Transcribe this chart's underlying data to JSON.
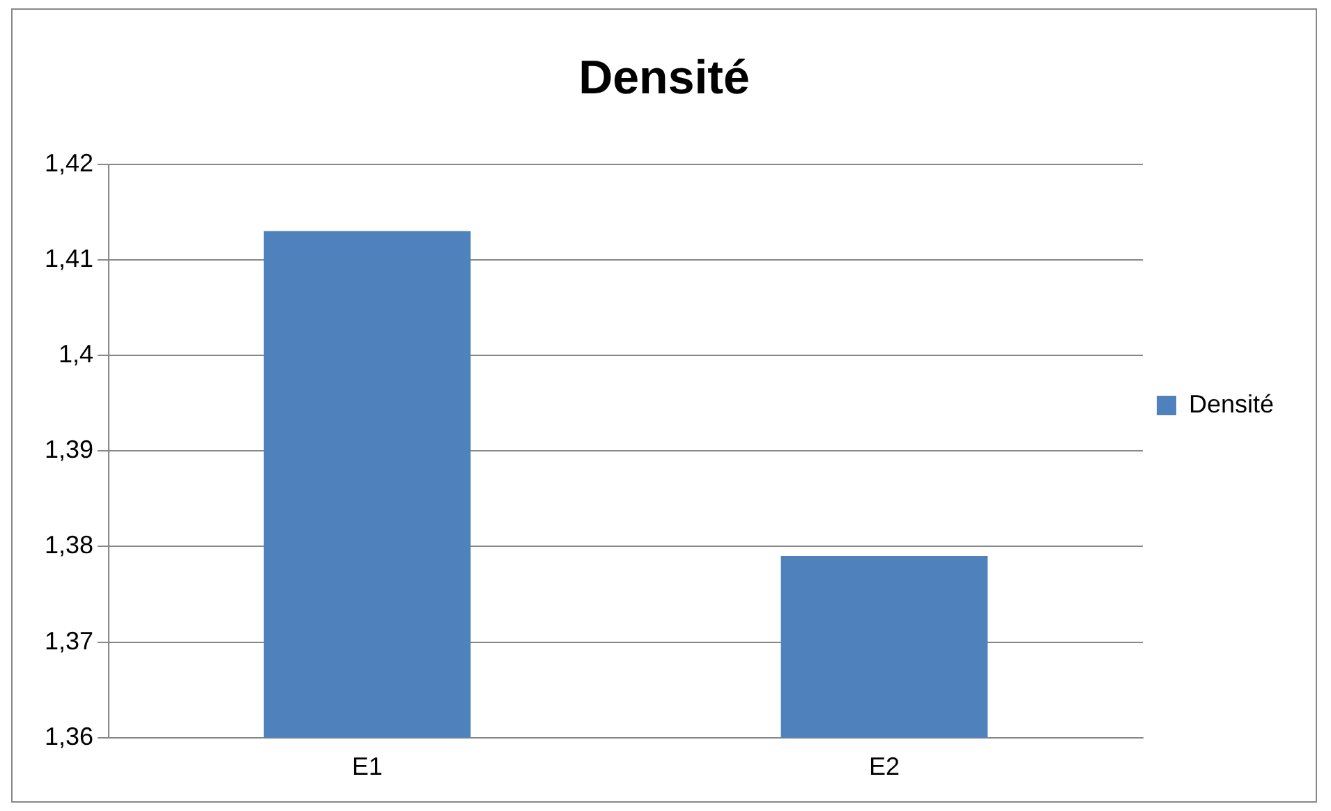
{
  "chart_data": {
    "type": "bar",
    "title": "Densité",
    "categories": [
      "E1",
      "E2"
    ],
    "series": [
      {
        "name": "Densité",
        "color": "#4f81bd",
        "values": [
          1.413,
          1.379
        ]
      }
    ],
    "ylim": [
      1.36,
      1.42
    ],
    "yticks": [
      {
        "value": 1.36,
        "label": "1,36"
      },
      {
        "value": 1.37,
        "label": "1,37"
      },
      {
        "value": 1.38,
        "label": "1,38"
      },
      {
        "value": 1.39,
        "label": "1,39"
      },
      {
        "value": 1.4,
        "label": "1,4"
      },
      {
        "value": 1.41,
        "label": "1,41"
      },
      {
        "value": 1.42,
        "label": "1,42"
      }
    ],
    "grid": "y",
    "legend": "right"
  }
}
